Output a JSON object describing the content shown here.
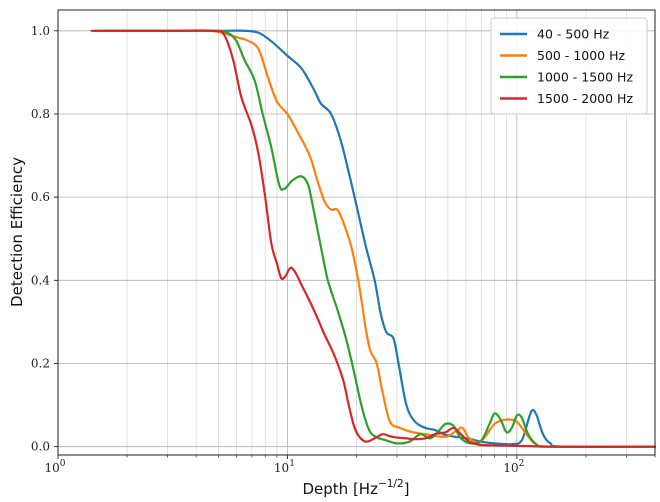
{
  "chart_data": {
    "type": "line",
    "xscale": "log",
    "xlim": [
      1,
      400
    ],
    "ylim": [
      -0.02,
      1.05
    ],
    "xlabel": "Depth [Hz",
    "xlabel_exponent": "−1/2",
    "xlabel_suffix": "]",
    "ylabel": "Detection Efficiency",
    "x_ticks": [
      {
        "value": 1,
        "base": "10",
        "exp": "0"
      },
      {
        "value": 10,
        "base": "10",
        "exp": "1"
      },
      {
        "value": 100,
        "base": "10",
        "exp": "2"
      }
    ],
    "y_ticks": [
      {
        "value": 0.0,
        "label": "0.0"
      },
      {
        "value": 0.2,
        "label": "0.2"
      },
      {
        "value": 0.4,
        "label": "0.4"
      },
      {
        "value": 0.6,
        "label": "0.6"
      },
      {
        "value": 0.8,
        "label": "0.8"
      },
      {
        "value": 1.0,
        "label": "1.0"
      }
    ],
    "grid": "major and minor",
    "legend_position": "top-right",
    "series": [
      {
        "name": "40 - 500 Hz",
        "color": "#1f77b4",
        "points": [
          [
            1.6,
            1.0
          ],
          [
            3,
            1.0
          ],
          [
            5,
            1.0
          ],
          [
            6.5,
            1.0
          ],
          [
            7.5,
            0.995
          ],
          [
            8.5,
            0.975
          ],
          [
            10,
            0.94
          ],
          [
            11.5,
            0.91
          ],
          [
            13,
            0.86
          ],
          [
            14,
            0.825
          ],
          [
            15.5,
            0.8
          ],
          [
            17,
            0.74
          ],
          [
            18.5,
            0.66
          ],
          [
            20,
            0.58
          ],
          [
            22,
            0.48
          ],
          [
            24,
            0.4
          ],
          [
            25.5,
            0.32
          ],
          [
            27,
            0.275
          ],
          [
            29,
            0.26
          ],
          [
            30.5,
            0.2
          ],
          [
            33,
            0.1
          ],
          [
            36,
            0.06
          ],
          [
            40,
            0.045
          ],
          [
            44,
            0.04
          ],
          [
            48,
            0.03
          ],
          [
            52,
            0.025
          ],
          [
            57,
            0.022
          ],
          [
            63,
            0.018
          ],
          [
            70,
            0.012
          ],
          [
            80,
            0.008
          ],
          [
            95,
            0.006
          ],
          [
            105,
            0.015
          ],
          [
            113,
            0.07
          ],
          [
            117,
            0.088
          ],
          [
            122,
            0.075
          ],
          [
            130,
            0.03
          ],
          [
            140,
            0.008
          ],
          [
            160,
            0.0
          ],
          [
            400,
            0.0
          ]
        ]
      },
      {
        "name": "500 - 1000 Hz",
        "color": "#ff7f0e",
        "points": [
          [
            1.5,
            1.0
          ],
          [
            3,
            1.0
          ],
          [
            4.5,
            1.0
          ],
          [
            5.2,
            0.995
          ],
          [
            6,
            0.985
          ],
          [
            6.8,
            0.975
          ],
          [
            7.5,
            0.955
          ],
          [
            8.2,
            0.89
          ],
          [
            9,
            0.83
          ],
          [
            10,
            0.8
          ],
          [
            11,
            0.76
          ],
          [
            12.5,
            0.7
          ],
          [
            13.5,
            0.64
          ],
          [
            14.5,
            0.59
          ],
          [
            15.5,
            0.57
          ],
          [
            16.5,
            0.57
          ],
          [
            17.5,
            0.54
          ],
          [
            19,
            0.48
          ],
          [
            20.5,
            0.39
          ],
          [
            22,
            0.28
          ],
          [
            23,
            0.23
          ],
          [
            24.5,
            0.2
          ],
          [
            26,
            0.13
          ],
          [
            28,
            0.06
          ],
          [
            31,
            0.045
          ],
          [
            35,
            0.035
          ],
          [
            40,
            0.03
          ],
          [
            45,
            0.025
          ],
          [
            50,
            0.025
          ],
          [
            55,
            0.04
          ],
          [
            58,
            0.045
          ],
          [
            62,
            0.02
          ],
          [
            68,
            0.01
          ],
          [
            73,
            0.025
          ],
          [
            80,
            0.055
          ],
          [
            90,
            0.065
          ],
          [
            100,
            0.06
          ],
          [
            110,
            0.03
          ],
          [
            120,
            0.008
          ],
          [
            140,
            0.0
          ],
          [
            400,
            0.0
          ]
        ]
      },
      {
        "name": "1000 - 1500 Hz",
        "color": "#2ca02c",
        "points": [
          [
            1.45,
            1.0
          ],
          [
            3,
            1.0
          ],
          [
            4.8,
            1.0
          ],
          [
            5.5,
            0.995
          ],
          [
            6,
            0.975
          ],
          [
            6.5,
            0.93
          ],
          [
            7.2,
            0.88
          ],
          [
            7.8,
            0.8
          ],
          [
            8.5,
            0.72
          ],
          [
            9.2,
            0.63
          ],
          [
            9.7,
            0.62
          ],
          [
            10.5,
            0.64
          ],
          [
            11.5,
            0.65
          ],
          [
            12.3,
            0.63
          ],
          [
            13,
            0.57
          ],
          [
            14,
            0.48
          ],
          [
            15,
            0.4
          ],
          [
            16.5,
            0.33
          ],
          [
            18,
            0.26
          ],
          [
            19.5,
            0.18
          ],
          [
            21,
            0.1
          ],
          [
            22.5,
            0.045
          ],
          [
            24,
            0.025
          ],
          [
            27,
            0.015
          ],
          [
            30,
            0.008
          ],
          [
            34,
            0.012
          ],
          [
            38,
            0.03
          ],
          [
            42,
            0.02
          ],
          [
            46,
            0.04
          ],
          [
            49,
            0.055
          ],
          [
            53,
            0.05
          ],
          [
            57,
            0.02
          ],
          [
            63,
            0.008
          ],
          [
            70,
            0.015
          ],
          [
            76,
            0.055
          ],
          [
            80,
            0.08
          ],
          [
            85,
            0.065
          ],
          [
            90,
            0.035
          ],
          [
            95,
            0.045
          ],
          [
            100,
            0.075
          ],
          [
            105,
            0.07
          ],
          [
            112,
            0.03
          ],
          [
            122,
            0.005
          ],
          [
            140,
            0.0
          ],
          [
            400,
            0.0
          ]
        ]
      },
      {
        "name": "1500 - 2000 Hz",
        "color": "#d62728",
        "points": [
          [
            1.4,
            1.0
          ],
          [
            3,
            1.0
          ],
          [
            4.8,
            1.0
          ],
          [
            5.3,
            0.99
          ],
          [
            5.8,
            0.93
          ],
          [
            6.3,
            0.84
          ],
          [
            7,
            0.77
          ],
          [
            7.5,
            0.7
          ],
          [
            8,
            0.6
          ],
          [
            8.5,
            0.49
          ],
          [
            9,
            0.44
          ],
          [
            9.4,
            0.405
          ],
          [
            9.8,
            0.41
          ],
          [
            10.3,
            0.43
          ],
          [
            10.8,
            0.42
          ],
          [
            11.5,
            0.39
          ],
          [
            12.5,
            0.35
          ],
          [
            13.5,
            0.31
          ],
          [
            14.5,
            0.27
          ],
          [
            16,
            0.22
          ],
          [
            17.5,
            0.16
          ],
          [
            18.5,
            0.1
          ],
          [
            19.5,
            0.05
          ],
          [
            20.5,
            0.025
          ],
          [
            22,
            0.012
          ],
          [
            24,
            0.02
          ],
          [
            26,
            0.03
          ],
          [
            28,
            0.025
          ],
          [
            30,
            0.022
          ],
          [
            33,
            0.02
          ],
          [
            36,
            0.018
          ],
          [
            40,
            0.02
          ],
          [
            44,
            0.03
          ],
          [
            49,
            0.035
          ],
          [
            53,
            0.045
          ],
          [
            57,
            0.03
          ],
          [
            62,
            0.012
          ],
          [
            68,
            0.005
          ],
          [
            80,
            0.003
          ],
          [
            100,
            0.002
          ],
          [
            150,
            0.0
          ],
          [
            400,
            0.0
          ]
        ]
      }
    ]
  }
}
